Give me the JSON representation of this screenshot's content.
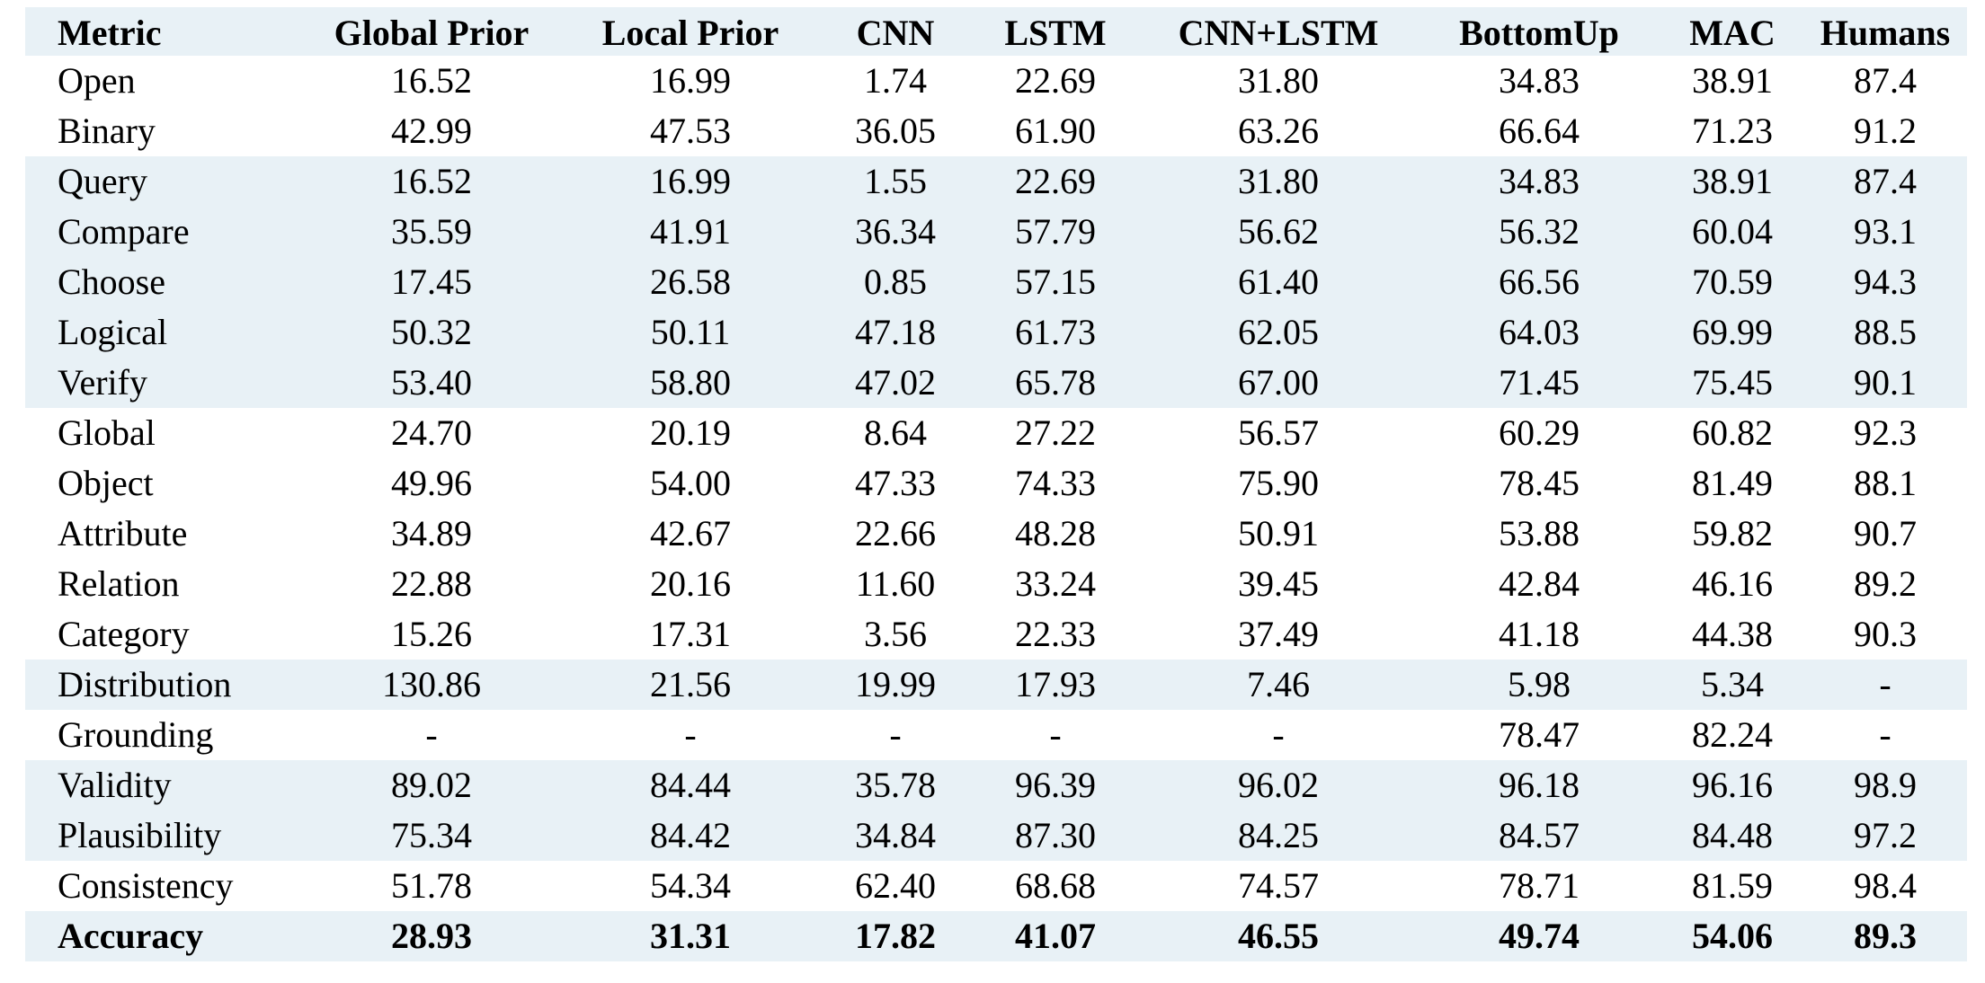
{
  "table": {
    "headers": [
      "Metric",
      "Global Prior",
      "Local Prior",
      "CNN",
      "LSTM",
      "CNN+LSTM",
      "BottomUp",
      "MAC",
      "Humans"
    ],
    "rows": [
      {
        "cells": [
          "Open",
          "16.52",
          "16.99",
          "1.74",
          "22.69",
          "31.80",
          "34.83",
          "38.91",
          "87.4"
        ],
        "shaded": false,
        "bold": false
      },
      {
        "cells": [
          "Binary",
          "42.99",
          "47.53",
          "36.05",
          "61.90",
          "63.26",
          "66.64",
          "71.23",
          "91.2"
        ],
        "shaded": false,
        "bold": false
      },
      {
        "cells": [
          "Query",
          "16.52",
          "16.99",
          "1.55",
          "22.69",
          "31.80",
          "34.83",
          "38.91",
          "87.4"
        ],
        "shaded": true,
        "bold": false
      },
      {
        "cells": [
          "Compare",
          "35.59",
          "41.91",
          "36.34",
          "57.79",
          "56.62",
          "56.32",
          "60.04",
          "93.1"
        ],
        "shaded": true,
        "bold": false
      },
      {
        "cells": [
          "Choose",
          "17.45",
          "26.58",
          "0.85",
          "57.15",
          "61.40",
          "66.56",
          "70.59",
          "94.3"
        ],
        "shaded": true,
        "bold": false
      },
      {
        "cells": [
          "Logical",
          "50.32",
          "50.11",
          "47.18",
          "61.73",
          "62.05",
          "64.03",
          "69.99",
          "88.5"
        ],
        "shaded": true,
        "bold": false
      },
      {
        "cells": [
          "Verify",
          "53.40",
          "58.80",
          "47.02",
          "65.78",
          "67.00",
          "71.45",
          "75.45",
          "90.1"
        ],
        "shaded": true,
        "bold": false
      },
      {
        "cells": [
          "Global",
          "24.70",
          "20.19",
          "8.64",
          "27.22",
          "56.57",
          "60.29",
          "60.82",
          "92.3"
        ],
        "shaded": false,
        "bold": false
      },
      {
        "cells": [
          "Object",
          "49.96",
          "54.00",
          "47.33",
          "74.33",
          "75.90",
          "78.45",
          "81.49",
          "88.1"
        ],
        "shaded": false,
        "bold": false
      },
      {
        "cells": [
          "Attribute",
          "34.89",
          "42.67",
          "22.66",
          "48.28",
          "50.91",
          "53.88",
          "59.82",
          "90.7"
        ],
        "shaded": false,
        "bold": false
      },
      {
        "cells": [
          "Relation",
          "22.88",
          "20.16",
          "11.60",
          "33.24",
          "39.45",
          "42.84",
          "46.16",
          "89.2"
        ],
        "shaded": false,
        "bold": false
      },
      {
        "cells": [
          "Category",
          "15.26",
          "17.31",
          "3.56",
          "22.33",
          "37.49",
          "41.18",
          "44.38",
          "90.3"
        ],
        "shaded": false,
        "bold": false
      },
      {
        "cells": [
          "Distribution",
          "130.86",
          "21.56",
          "19.99",
          "17.93",
          "7.46",
          "5.98",
          "5.34",
          "-"
        ],
        "shaded": true,
        "bold": false
      },
      {
        "cells": [
          "Grounding",
          "-",
          "-",
          "-",
          "-",
          "-",
          "78.47",
          "82.24",
          "-"
        ],
        "shaded": false,
        "bold": false
      },
      {
        "cells": [
          "Validity",
          "89.02",
          "84.44",
          "35.78",
          "96.39",
          "96.02",
          "96.18",
          "96.16",
          "98.9"
        ],
        "shaded": true,
        "bold": false
      },
      {
        "cells": [
          "Plausibility",
          "75.34",
          "84.42",
          "34.84",
          "87.30",
          "84.25",
          "84.57",
          "84.48",
          "97.2"
        ],
        "shaded": true,
        "bold": false
      },
      {
        "cells": [
          "Consistency",
          "51.78",
          "54.34",
          "62.40",
          "68.68",
          "74.57",
          "78.71",
          "81.59",
          "98.4"
        ],
        "shaded": false,
        "bold": false
      },
      {
        "cells": [
          "Accuracy",
          "28.93",
          "31.31",
          "17.82",
          "41.07",
          "46.55",
          "49.74",
          "54.06",
          "89.3"
        ],
        "shaded": true,
        "bold": true
      }
    ]
  },
  "colors": {
    "shade": "#e8f1f6",
    "text": "#000000",
    "background": "#ffffff"
  }
}
